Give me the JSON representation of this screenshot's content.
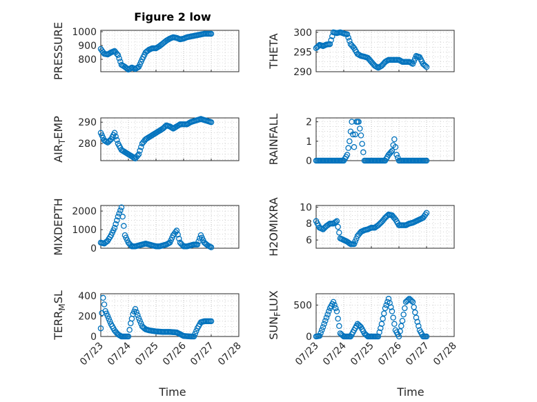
{
  "figure": {
    "title": "Figure 2 low",
    "xlabel": "Time"
  },
  "colors": {
    "marker": "#0072BD",
    "grid": "#b7b7b7",
    "axis": "#262626"
  },
  "chart_data": [
    {
      "type": "scatter",
      "ylabel": "PRESSURE",
      "xlim": [
        "07/23",
        "07/28"
      ],
      "ylim": [
        710,
        1010
      ],
      "yticks": [
        800,
        900,
        1000
      ],
      "xticks": [
        "07/23",
        "07/24",
        "07/25",
        "07/26",
        "07/27",
        "07/28"
      ],
      "x": [
        "07/23 00:00",
        "07/23 03:00",
        "07/23 06:00",
        "07/23 09:00",
        "07/23 12:00",
        "07/23 15:00",
        "07/23 18:00",
        "07/23 21:00",
        "07/24 00:00",
        "07/24 03:00",
        "07/24 06:00",
        "07/24 09:00",
        "07/24 12:00",
        "07/24 15:00",
        "07/24 18:00",
        "07/24 21:00",
        "07/25 00:00",
        "07/25 03:00",
        "07/25 06:00",
        "07/25 09:00",
        "07/25 12:00",
        "07/25 15:00",
        "07/25 18:00",
        "07/25 21:00",
        "07/26 00:00",
        "07/26 03:00",
        "07/26 06:00",
        "07/26 09:00",
        "07/26 12:00",
        "07/26 15:00",
        "07/26 18:00",
        "07/26 21:00",
        "07/27 00:00"
      ],
      "y": [
        875,
        840,
        835,
        850,
        860,
        830,
        760,
        745,
        725,
        740,
        730,
        745,
        800,
        850,
        870,
        880,
        880,
        895,
        915,
        935,
        950,
        960,
        955,
        945,
        950,
        960,
        965,
        970,
        975,
        980,
        985,
        985,
        985
      ]
    },
    {
      "type": "scatter",
      "ylabel": "THETA",
      "xlim": [
        "07/23",
        "07/28"
      ],
      "ylim": [
        290,
        300.5
      ],
      "yticks": [
        290,
        295,
        300
      ],
      "xticks": [
        "07/23",
        "07/24",
        "07/25",
        "07/26",
        "07/27",
        "07/28"
      ],
      "x": [
        "07/23 00:00",
        "07/23 03:00",
        "07/23 06:00",
        "07/23 09:00",
        "07/23 12:00",
        "07/23 15:00",
        "07/23 18:00",
        "07/23 21:00",
        "07/24 00:00",
        "07/24 03:00",
        "07/24 06:00",
        "07/24 09:00",
        "07/24 12:00",
        "07/24 15:00",
        "07/24 18:00",
        "07/24 21:00",
        "07/25 00:00",
        "07/25 03:00",
        "07/25 06:00",
        "07/25 09:00",
        "07/25 12:00",
        "07/25 15:00",
        "07/25 18:00",
        "07/25 21:00",
        "07/26 00:00",
        "07/26 03:00",
        "07/26 06:00",
        "07/26 09:00",
        "07/26 12:00",
        "07/26 15:00",
        "07/26 18:00",
        "07/26 21:00",
        "07/27 00:00"
      ],
      "y": [
        296,
        296.8,
        296.5,
        296.9,
        297,
        300,
        299.8,
        300,
        299.7,
        299.5,
        297,
        296,
        294.5,
        294,
        293.8,
        293.5,
        292.5,
        291.5,
        291,
        291.5,
        292.5,
        293,
        293,
        293,
        293,
        292.5,
        292.5,
        292.5,
        292,
        294,
        293.7,
        292,
        291.2
      ]
    },
    {
      "type": "scatter",
      "ylabel": "AIR_TEMP",
      "xlim": [
        "07/23",
        "07/28"
      ],
      "ylim": [
        272,
        292
      ],
      "yticks": [
        280,
        290
      ],
      "xticks": [
        "07/23",
        "07/24",
        "07/25",
        "07/26",
        "07/27",
        "07/28"
      ],
      "x": [
        "07/23 00:00",
        "07/23 03:00",
        "07/23 06:00",
        "07/23 09:00",
        "07/23 12:00",
        "07/23 15:00",
        "07/23 18:00",
        "07/23 21:00",
        "07/24 00:00",
        "07/24 03:00",
        "07/24 06:00",
        "07/24 09:00",
        "07/24 12:00",
        "07/24 15:00",
        "07/24 18:00",
        "07/24 21:00",
        "07/25 00:00",
        "07/25 03:00",
        "07/25 06:00",
        "07/25 09:00",
        "07/25 12:00",
        "07/25 15:00",
        "07/25 18:00",
        "07/25 21:00",
        "07/26 00:00",
        "07/26 03:00",
        "07/26 06:00",
        "07/26 09:00",
        "07/26 12:00",
        "07/26 15:00",
        "07/26 18:00",
        "07/26 21:00",
        "07/27 00:00"
      ],
      "y": [
        285,
        281.5,
        280.5,
        282,
        285,
        280,
        277,
        276,
        275,
        274,
        273,
        275,
        280,
        282,
        283,
        284,
        285,
        286,
        287,
        288.5,
        288,
        287,
        288,
        289,
        289,
        289,
        290,
        290.5,
        291,
        291.5,
        291,
        290.5,
        290
      ]
    },
    {
      "type": "scatter",
      "ylabel": "RAINFALL",
      "xlim": [
        "07/23",
        "07/28"
      ],
      "ylim": [
        0,
        2.2
      ],
      "yticks": [
        0,
        1,
        2
      ],
      "xticks": [
        "07/23",
        "07/24",
        "07/25",
        "07/26",
        "07/27",
        "07/28"
      ],
      "x": [
        "07/23 00:00",
        "07/23 06:00",
        "07/23 12:00",
        "07/23 18:00",
        "07/24 00:00",
        "07/24 03:00",
        "07/24 05:00",
        "07/24 07:00",
        "07/24 09:00",
        "07/24 11:00",
        "07/24 13:00",
        "07/24 15:00",
        "07/24 18:00",
        "07/25 00:00",
        "07/25 06:00",
        "07/25 12:00",
        "07/25 15:00",
        "07/25 18:00",
        "07/25 20:00",
        "07/25 22:00",
        "07/26 00:00",
        "07/26 06:00",
        "07/26 12:00",
        "07/26 18:00",
        "07/27 00:00"
      ],
      "y": [
        0,
        0,
        0,
        0,
        0,
        0.3,
        1,
        2,
        0.7,
        2,
        2,
        1.3,
        0,
        0,
        0,
        0,
        0.3,
        0.5,
        1.1,
        0.3,
        0,
        0,
        0,
        0,
        0
      ]
    },
    {
      "type": "scatter",
      "ylabel": "MIXDEPTH",
      "xlim": [
        "07/23",
        "07/28"
      ],
      "ylim": [
        0,
        2300
      ],
      "yticks": [
        0,
        1000,
        2000
      ],
      "xticks": [
        "07/23",
        "07/24",
        "07/25",
        "07/26",
        "07/27",
        "07/28"
      ],
      "x": [
        "07/23 00:00",
        "07/23 03:00",
        "07/23 06:00",
        "07/23 09:00",
        "07/23 12:00",
        "07/23 15:00",
        "07/23 18:00",
        "07/23 21:00",
        "07/24 00:00",
        "07/24 03:00",
        "07/24 06:00",
        "07/24 09:00",
        "07/24 12:00",
        "07/24 15:00",
        "07/24 18:00",
        "07/24 21:00",
        "07/25 00:00",
        "07/25 03:00",
        "07/25 06:00",
        "07/25 09:00",
        "07/25 12:00",
        "07/25 15:00",
        "07/25 18:00",
        "07/25 21:00",
        "07/26 00:00",
        "07/26 03:00",
        "07/26 06:00",
        "07/26 09:00",
        "07/26 12:00",
        "07/26 15:00",
        "07/26 18:00",
        "07/26 21:00",
        "07/27 00:00"
      ],
      "y": [
        300,
        250,
        400,
        700,
        1100,
        1700,
        2200,
        700,
        300,
        100,
        100,
        150,
        200,
        250,
        200,
        150,
        100,
        100,
        150,
        200,
        300,
        700,
        950,
        300,
        100,
        100,
        150,
        200,
        200,
        700,
        300,
        150,
        50
      ]
    },
    {
      "type": "scatter",
      "ylabel": "H2OMIXRA",
      "xlim": [
        "07/23",
        "07/28"
      ],
      "ylim": [
        5,
        10.2
      ],
      "yticks": [
        6,
        8,
        10
      ],
      "xticks": [
        "07/23",
        "07/24",
        "07/25",
        "07/26",
        "07/27",
        "07/28"
      ],
      "x": [
        "07/23 00:00",
        "07/23 03:00",
        "07/23 06:00",
        "07/23 09:00",
        "07/23 12:00",
        "07/23 15:00",
        "07/23 18:00",
        "07/23 21:00",
        "07/24 00:00",
        "07/24 03:00",
        "07/24 06:00",
        "07/24 09:00",
        "07/24 12:00",
        "07/24 15:00",
        "07/24 18:00",
        "07/24 21:00",
        "07/25 00:00",
        "07/25 03:00",
        "07/25 06:00",
        "07/25 09:00",
        "07/25 12:00",
        "07/25 15:00",
        "07/25 18:00",
        "07/25 21:00",
        "07/26 00:00",
        "07/26 03:00",
        "07/26 06:00",
        "07/26 09:00",
        "07/26 12:00",
        "07/26 15:00",
        "07/26 18:00",
        "07/26 21:00",
        "07/27 00:00"
      ],
      "y": [
        8.3,
        7.5,
        7.3,
        7.7,
        8,
        8,
        8.3,
        6.2,
        6,
        5.8,
        5.5,
        5.5,
        6.5,
        7,
        7.2,
        7.3,
        7.5,
        7.5,
        7.8,
        8.2,
        8.7,
        9.1,
        9,
        8.5,
        7.8,
        7.8,
        7.8,
        8,
        8.1,
        8.3,
        8.5,
        8.7,
        9.3
      ]
    },
    {
      "type": "scatter",
      "ylabel": "TERR_MSL",
      "xlim": [
        "07/23",
        "07/28"
      ],
      "ylim": [
        0,
        420
      ],
      "yticks": [
        0,
        200,
        400
      ],
      "xticks": [
        "07/23",
        "07/24",
        "07/25",
        "07/26",
        "07/27",
        "07/28"
      ],
      "x": [
        "07/23 00:00",
        "07/23 02:00",
        "07/23 04:00",
        "07/23 06:00",
        "07/23 09:00",
        "07/23 12:00",
        "07/23 15:00",
        "07/23 18:00",
        "07/23 21:00",
        "07/24 00:00",
        "07/24 02:00",
        "07/24 04:00",
        "07/24 06:00",
        "07/24 09:00",
        "07/24 12:00",
        "07/24 15:00",
        "07/24 18:00",
        "07/24 21:00",
        "07/25 00:00",
        "07/25 06:00",
        "07/25 12:00",
        "07/25 18:00",
        "07/26 00:00",
        "07/26 06:00",
        "07/26 09:00",
        "07/26 12:00",
        "07/26 15:00",
        "07/26 18:00",
        "07/26 21:00",
        "07/27 00:00"
      ],
      "y": [
        80,
        380,
        250,
        200,
        120,
        60,
        20,
        0,
        0,
        0,
        130,
        220,
        270,
        180,
        100,
        70,
        60,
        55,
        50,
        45,
        45,
        40,
        5,
        0,
        0,
        80,
        140,
        150,
        150,
        150
      ]
    },
    {
      "type": "scatter",
      "ylabel": "SUN_FLUX",
      "xlim": [
        "07/23",
        "07/28"
      ],
      "ylim": [
        0,
        680
      ],
      "yticks": [
        0,
        500
      ],
      "xticks": [
        "07/23",
        "07/24",
        "07/25",
        "07/26",
        "07/27",
        "07/28"
      ],
      "x": [
        "07/23 00:00",
        "07/23 03:00",
        "07/23 06:00",
        "07/23 09:00",
        "07/23 12:00",
        "07/23 15:00",
        "07/23 18:00",
        "07/23 21:00",
        "07/24 00:00",
        "07/24 03:00",
        "07/24 06:00",
        "07/24 09:00",
        "07/24 12:00",
        "07/24 15:00",
        "07/24 18:00",
        "07/24 21:00",
        "07/25 00:00",
        "07/25 03:00",
        "07/25 06:00",
        "07/25 09:00",
        "07/25 12:00",
        "07/25 15:00",
        "07/25 18:00",
        "07/25 21:00",
        "07/26 00:00",
        "07/26 03:00",
        "07/26 06:00",
        "07/26 09:00",
        "07/26 12:00",
        "07/26 15:00",
        "07/26 18:00",
        "07/26 21:00",
        "07/27 00:00"
      ],
      "y": [
        0,
        10,
        150,
        300,
        450,
        550,
        400,
        50,
        0,
        0,
        0,
        100,
        200,
        150,
        50,
        0,
        0,
        0,
        0,
        200,
        450,
        600,
        400,
        100,
        0,
        250,
        550,
        600,
        550,
        300,
        100,
        0,
        0
      ]
    }
  ]
}
